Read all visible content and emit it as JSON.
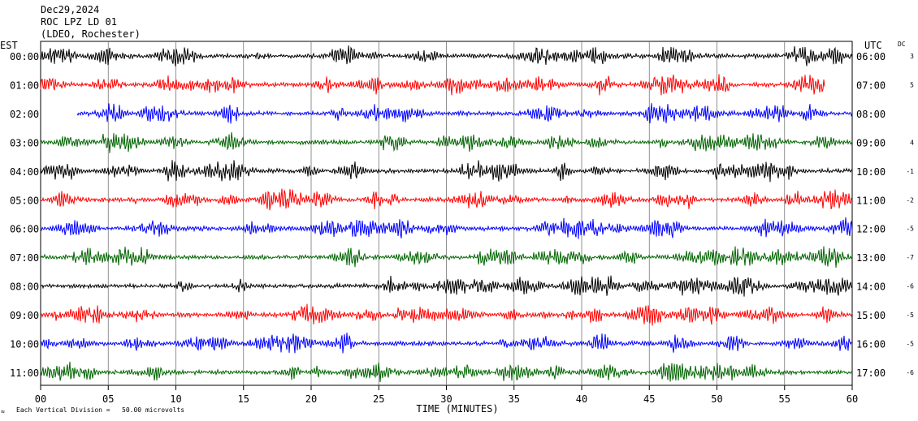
{
  "header": {
    "date": "Dec29,2024",
    "station": "ROC LPZ LD 01",
    "network": "(LDEO, Rochester)"
  },
  "left_axis_label": "EST",
  "right_axis_label": "UTC",
  "dc_label": "DC",
  "footer": {
    "scale_note": "Each Vertical Division =   50.00 microvolts",
    "corner_mark": "≈"
  },
  "colors": {
    "cycle": [
      "#000000",
      "#ff0000",
      "#0000ff",
      "#006400"
    ],
    "grid": "#000000",
    "background": "#ffffff"
  },
  "chart_data": {
    "type": "line",
    "description_kind": "helicorder seismogram",
    "xlabel": "TIME (MINUTES)",
    "xlim": [
      0,
      60
    ],
    "x_ticks": [
      "00",
      "05",
      "10",
      "15",
      "20",
      "25",
      "30",
      "35",
      "40",
      "45",
      "50",
      "55",
      "60"
    ],
    "rows": [
      {
        "est": "00:00",
        "utc": "06:00",
        "dc": "3",
        "start_min": 0,
        "end_min": 60
      },
      {
        "est": "01:00",
        "utc": "07:00",
        "dc": "5",
        "start_min": 0,
        "end_min": 58
      },
      {
        "est": "02:00",
        "utc": "08:00",
        "dc": "",
        "start_min": 2.7,
        "end_min": 60
      },
      {
        "est": "03:00",
        "utc": "09:00",
        "dc": "4",
        "start_min": 0,
        "end_min": 60
      },
      {
        "est": "04:00",
        "utc": "10:00",
        "dc": "-1",
        "start_min": 0,
        "end_min": 60
      },
      {
        "est": "05:00",
        "utc": "11:00",
        "dc": "-2",
        "start_min": 0,
        "end_min": 60
      },
      {
        "est": "06:00",
        "utc": "12:00",
        "dc": "-5",
        "start_min": 0,
        "end_min": 60
      },
      {
        "est": "07:00",
        "utc": "13:00",
        "dc": "-7",
        "start_min": 0,
        "end_min": 60
      },
      {
        "est": "08:00",
        "utc": "14:00",
        "dc": "-6",
        "start_min": 0,
        "end_min": 60
      },
      {
        "est": "09:00",
        "utc": "15:00",
        "dc": "-5",
        "start_min": 0,
        "end_min": 60
      },
      {
        "est": "10:00",
        "utc": "16:00",
        "dc": "-5",
        "start_min": 0,
        "end_min": 60
      },
      {
        "est": "11:00",
        "utc": "17:00",
        "dc": "-6",
        "start_min": 0,
        "end_min": 60
      }
    ]
  }
}
